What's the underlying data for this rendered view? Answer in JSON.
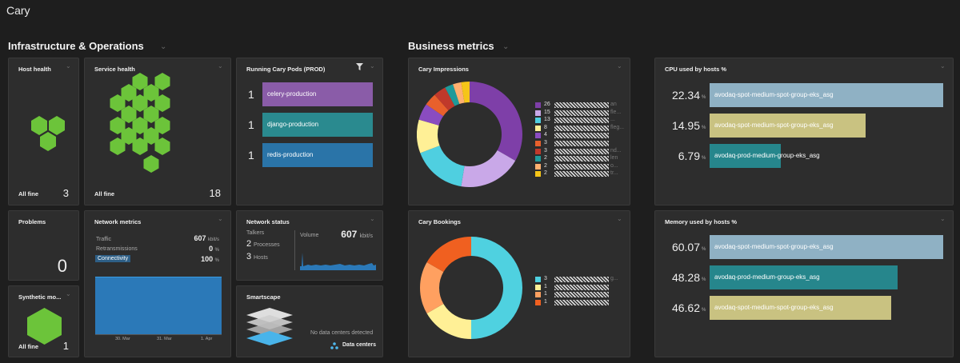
{
  "header": {
    "title": "Cary"
  },
  "sections": {
    "infra": "Infrastructure & Operations",
    "business": "Business metrics"
  },
  "host_health": {
    "title": "Host health",
    "status": "All fine",
    "count": "3"
  },
  "service_health": {
    "title": "Service health",
    "status": "All fine",
    "count": "18"
  },
  "pods": {
    "title": "Running Cary Pods (PROD)",
    "items": [
      {
        "count": "1",
        "name": "celery-production",
        "color": "#8a5ca8"
      },
      {
        "count": "1",
        "name": "django-production",
        "color": "#2a8a8f"
      },
      {
        "count": "1",
        "name": "redis-production",
        "color": "#2a74a8"
      }
    ]
  },
  "problems": {
    "title": "Problems",
    "count": "0"
  },
  "synthetic": {
    "title": "Synthetic mo...",
    "status": "All fine",
    "count": "1"
  },
  "network_metrics": {
    "title": "Network metrics",
    "rows": [
      {
        "label": "Traffic",
        "value": "607",
        "unit": "kbit/s"
      },
      {
        "label": "Retransmissions",
        "value": "0",
        "unit": "%"
      },
      {
        "label": "Connectivity",
        "value": "100",
        "unit": "%"
      }
    ],
    "x_ticks": [
      "30. Mar",
      "31. Mar",
      "1. Apr"
    ]
  },
  "network_status": {
    "title": "Network status",
    "talkers": "Talkers",
    "processes_n": "2",
    "processes": "Processes",
    "hosts_n": "3",
    "hosts": "Hosts",
    "volume": "Volume",
    "volume_value": "607",
    "volume_unit": "kbit/s"
  },
  "smartscape": {
    "title": "Smartscape",
    "message": "No data centers detected",
    "link": "Data centers"
  },
  "impressions": {
    "title": "Cary Impressions",
    "legend": [
      {
        "n": "26",
        "tail": "an",
        "color": "#7e3fa8"
      },
      {
        "n": "15",
        "tail": "fle...",
        "color": "#c9a8e8"
      },
      {
        "n": "13",
        "tail": "...",
        "color": "#4fcfe0"
      },
      {
        "n": "8",
        "tail": "fleg...",
        "color": "#fff096"
      },
      {
        "n": "4",
        "tail": "",
        "color": "#8a4cc0"
      },
      {
        "n": "3",
        "tail": "",
        "color": "#e8602c"
      },
      {
        "n": "3",
        "tail": "nd...",
        "color": "#c0392b"
      },
      {
        "n": "2",
        "tail": "len",
        "color": "#1e9a9a"
      },
      {
        "n": "2",
        "tail": "o...",
        "color": "#ffb070"
      },
      {
        "n": "2",
        "tail": "tr...",
        "color": "#f5c518"
      }
    ]
  },
  "bookings": {
    "title": "Cary Bookings",
    "legend": [
      {
        "n": "3",
        "tail": "g...",
        "color": "#4fd1e0"
      },
      {
        "n": "1",
        "tail": "",
        "color": "#fff096"
      },
      {
        "n": "1",
        "tail": "",
        "color": "#ffa060"
      },
      {
        "n": "1",
        "tail": "",
        "color": "#f06020"
      }
    ]
  },
  "cpu": {
    "title": "CPU used by hosts %",
    "unit": "%",
    "rows": [
      {
        "value": "22.34",
        "fill": 1.0,
        "name": "avodaq-spot-medium-spot-group-eks_asg",
        "color": "#8fb1c4"
      },
      {
        "value": "14.95",
        "fill": 0.669,
        "name": "avodaq-spot-medium-spot-group-eks_asg",
        "color": "#c9c281"
      },
      {
        "value": "6.79",
        "fill": 0.304,
        "name": "avodaq-prod-medium-group-eks_asg",
        "color": "#26868c"
      }
    ]
  },
  "memory": {
    "title": "Memory used by hosts %",
    "unit": "%",
    "rows": [
      {
        "value": "60.07",
        "fill": 1.0,
        "name": "avodaq-spot-medium-spot-group-eks_asg",
        "color": "#8fb1c4"
      },
      {
        "value": "48.28",
        "fill": 0.804,
        "name": "avodaq-prod-medium-group-eks_asg",
        "color": "#26868c"
      },
      {
        "value": "46.62",
        "fill": 0.776,
        "name": "avodaq-spot-medium-spot-group-eks_asg",
        "color": "#c9c281"
      }
    ]
  }
}
